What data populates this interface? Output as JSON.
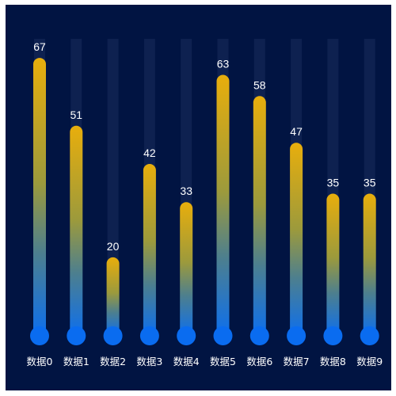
{
  "chart_data": {
    "type": "bar",
    "categories": [
      "数据0",
      "数据1",
      "数据2",
      "数据3",
      "数据4",
      "数据5",
      "数据6",
      "数据7",
      "数据8",
      "数据9"
    ],
    "values": [
      67,
      51,
      20,
      42,
      33,
      63,
      58,
      47,
      35,
      35
    ],
    "ylim": [
      0,
      70
    ],
    "grid": false,
    "legend": "none",
    "colors": {
      "background": "#011442",
      "track": "#0e2150",
      "gradient_top": "#e8ae0c",
      "gradient_bottom": "#0d6fee",
      "base_circle": "#0a6cf0",
      "label_text": "#ffffff"
    }
  }
}
